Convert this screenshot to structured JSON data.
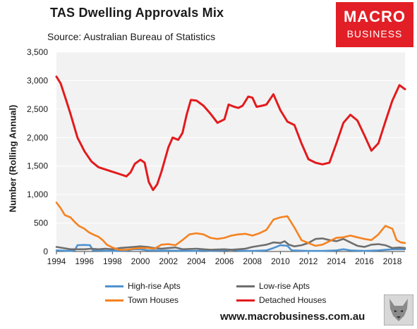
{
  "title": "TAS Dwelling Approvals Mix",
  "subtitle": "Source: Australian Bureau of Statistics",
  "logo": {
    "line1": "MACRO",
    "line2": "BUSINESS",
    "color": "#e21f26"
  },
  "footer_url": "www.macrobusiness.com.au",
  "chart_data": {
    "type": "line",
    "ylabel": "Number (Rolling Annual)",
    "xlabel": "",
    "xlim": [
      1994,
      2018.9
    ],
    "ylim": [
      0,
      3500
    ],
    "x_ticks": [
      "1994",
      "1996",
      "1998",
      "2000",
      "2002",
      "2004",
      "2006",
      "2008",
      "2010",
      "2012",
      "2014",
      "2016",
      "2018"
    ],
    "y_ticks": [
      "0",
      "500",
      "1,000",
      "1,500",
      "2,000",
      "2,500",
      "3,000",
      "3,500"
    ],
    "grid": true,
    "plot_background": "#f2f2f2",
    "legend_position": "bottom",
    "series": [
      {
        "name": "High-rise Apts",
        "color": "#4f93cf",
        "points": [
          [
            1994,
            20
          ],
          [
            1995,
            10
          ],
          [
            1995.3,
            20
          ],
          [
            1995.5,
            110
          ],
          [
            1996,
            115
          ],
          [
            1996.4,
            110
          ],
          [
            1996.6,
            20
          ],
          [
            1998,
            10
          ],
          [
            1999,
            15
          ],
          [
            1999.5,
            40
          ],
          [
            2000,
            40
          ],
          [
            2000.5,
            20
          ],
          [
            2004,
            10
          ],
          [
            2004.5,
            20
          ],
          [
            2005,
            10
          ],
          [
            2006,
            20
          ],
          [
            2006.5,
            30
          ],
          [
            2007,
            15
          ],
          [
            2008,
            10
          ],
          [
            2009,
            20
          ],
          [
            2009.5,
            60
          ],
          [
            2010,
            110
          ],
          [
            2010.5,
            100
          ],
          [
            2010.8,
            20
          ],
          [
            2012,
            10
          ],
          [
            2013,
            10
          ],
          [
            2014,
            20
          ],
          [
            2014.5,
            40
          ],
          [
            2015,
            20
          ],
          [
            2016,
            10
          ],
          [
            2017,
            20
          ],
          [
            2018,
            40
          ],
          [
            2018.9,
            40
          ]
        ]
      },
      {
        "name": "Low-rise Apts",
        "color": "#6e6e6e",
        "points": [
          [
            1994,
            80
          ],
          [
            1994.5,
            60
          ],
          [
            1995,
            40
          ],
          [
            1996,
            40
          ],
          [
            1996.5,
            50
          ],
          [
            1997,
            40
          ],
          [
            1997.5,
            50
          ],
          [
            1998,
            40
          ],
          [
            1998.5,
            60
          ],
          [
            1999,
            70
          ],
          [
            1999.5,
            80
          ],
          [
            2000,
            90
          ],
          [
            2000.5,
            80
          ],
          [
            2001,
            60
          ],
          [
            2001.5,
            50
          ],
          [
            2002,
            60
          ],
          [
            2002.5,
            70
          ],
          [
            2003,
            40
          ],
          [
            2004,
            50
          ],
          [
            2005,
            30
          ],
          [
            2006,
            40
          ],
          [
            2006.5,
            30
          ],
          [
            2007,
            40
          ],
          [
            2007.5,
            50
          ],
          [
            2008,
            80
          ],
          [
            2008.5,
            100
          ],
          [
            2009,
            120
          ],
          [
            2009.5,
            160
          ],
          [
            2010,
            150
          ],
          [
            2010.3,
            180
          ],
          [
            2010.6,
            120
          ],
          [
            2011,
            90
          ],
          [
            2011.5,
            110
          ],
          [
            2012,
            150
          ],
          [
            2012.5,
            220
          ],
          [
            2013,
            230
          ],
          [
            2013.5,
            200
          ],
          [
            2014,
            180
          ],
          [
            2014.5,
            220
          ],
          [
            2015,
            160
          ],
          [
            2015.5,
            100
          ],
          [
            2016,
            80
          ],
          [
            2016.5,
            120
          ],
          [
            2017,
            130
          ],
          [
            2017.5,
            110
          ],
          [
            2018,
            60
          ],
          [
            2018.5,
            70
          ],
          [
            2018.9,
            60
          ]
        ]
      },
      {
        "name": "Town Houses",
        "color": "#f58220",
        "points": [
          [
            1994,
            860
          ],
          [
            1994.3,
            760
          ],
          [
            1994.6,
            640
          ],
          [
            1995,
            600
          ],
          [
            1995.3,
            520
          ],
          [
            1995.6,
            450
          ],
          [
            1996,
            400
          ],
          [
            1996.3,
            340
          ],
          [
            1996.6,
            300
          ],
          [
            1997,
            260
          ],
          [
            1997.3,
            200
          ],
          [
            1997.6,
            120
          ],
          [
            1998,
            70
          ],
          [
            1998.5,
            30
          ],
          [
            1999,
            30
          ],
          [
            1999.5,
            50
          ],
          [
            2000,
            60
          ],
          [
            2000.5,
            60
          ],
          [
            2001,
            50
          ],
          [
            2001.5,
            120
          ],
          [
            2002,
            130
          ],
          [
            2002.5,
            110
          ],
          [
            2003,
            200
          ],
          [
            2003.5,
            300
          ],
          [
            2004,
            320
          ],
          [
            2004.5,
            300
          ],
          [
            2005,
            240
          ],
          [
            2005.5,
            220
          ],
          [
            2006,
            240
          ],
          [
            2006.5,
            280
          ],
          [
            2007,
            300
          ],
          [
            2007.5,
            310
          ],
          [
            2008,
            280
          ],
          [
            2008.5,
            320
          ],
          [
            2009,
            380
          ],
          [
            2009.5,
            560
          ],
          [
            2010,
            600
          ],
          [
            2010.5,
            620
          ],
          [
            2011,
            420
          ],
          [
            2011.5,
            200
          ],
          [
            2012,
            150
          ],
          [
            2012.5,
            100
          ],
          [
            2013,
            120
          ],
          [
            2013.5,
            180
          ],
          [
            2014,
            240
          ],
          [
            2014.5,
            250
          ],
          [
            2015,
            280
          ],
          [
            2015.5,
            250
          ],
          [
            2016,
            220
          ],
          [
            2016.5,
            200
          ],
          [
            2017,
            300
          ],
          [
            2017.5,
            450
          ],
          [
            2018,
            400
          ],
          [
            2018.3,
            200
          ],
          [
            2018.6,
            160
          ],
          [
            2018.9,
            150
          ]
        ]
      },
      {
        "name": "Detached Houses",
        "color": "#e31a1c",
        "points": [
          [
            1994,
            3070
          ],
          [
            1994.3,
            2950
          ],
          [
            1994.7,
            2650
          ],
          [
            1995,
            2420
          ],
          [
            1995.5,
            2000
          ],
          [
            1996,
            1760
          ],
          [
            1996.5,
            1580
          ],
          [
            1997,
            1480
          ],
          [
            1997.5,
            1440
          ],
          [
            1998,
            1400
          ],
          [
            1998.5,
            1360
          ],
          [
            1999,
            1320
          ],
          [
            1999.3,
            1390
          ],
          [
            1999.6,
            1540
          ],
          [
            2000,
            1610
          ],
          [
            2000.3,
            1560
          ],
          [
            2000.6,
            1220
          ],
          [
            2000.9,
            1080
          ],
          [
            2001.2,
            1180
          ],
          [
            2001.5,
            1400
          ],
          [
            2002,
            1830
          ],
          [
            2002.3,
            2000
          ],
          [
            2002.7,
            1960
          ],
          [
            2003,
            2080
          ],
          [
            2003.3,
            2400
          ],
          [
            2003.6,
            2660
          ],
          [
            2004,
            2650
          ],
          [
            2004.5,
            2560
          ],
          [
            2005,
            2420
          ],
          [
            2005.5,
            2260
          ],
          [
            2006,
            2320
          ],
          [
            2006.3,
            2580
          ],
          [
            2006.7,
            2540
          ],
          [
            2007,
            2520
          ],
          [
            2007.3,
            2560
          ],
          [
            2007.7,
            2720
          ],
          [
            2008,
            2700
          ],
          [
            2008.3,
            2540
          ],
          [
            2008.7,
            2560
          ],
          [
            2009,
            2580
          ],
          [
            2009.5,
            2760
          ],
          [
            2010,
            2480
          ],
          [
            2010.5,
            2280
          ],
          [
            2011,
            2220
          ],
          [
            2011.5,
            1900
          ],
          [
            2012,
            1620
          ],
          [
            2012.5,
            1560
          ],
          [
            2013,
            1530
          ],
          [
            2013.5,
            1560
          ],
          [
            2014,
            1900
          ],
          [
            2014.5,
            2260
          ],
          [
            2015,
            2400
          ],
          [
            2015.5,
            2300
          ],
          [
            2016,
            2040
          ],
          [
            2016.5,
            1770
          ],
          [
            2017,
            1900
          ],
          [
            2017.5,
            2280
          ],
          [
            2018,
            2650
          ],
          [
            2018.5,
            2920
          ],
          [
            2018.9,
            2850
          ]
        ]
      }
    ]
  }
}
